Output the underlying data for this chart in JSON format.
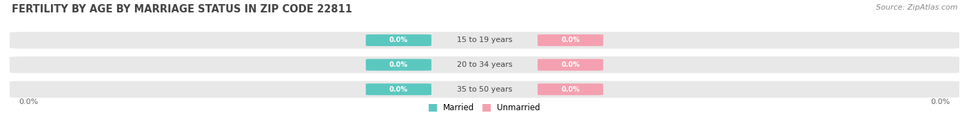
{
  "title": "FERTILITY BY AGE BY MARRIAGE STATUS IN ZIP CODE 22811",
  "source": "Source: ZipAtlas.com",
  "categories": [
    "15 to 19 years",
    "20 to 34 years",
    "35 to 50 years"
  ],
  "married_values": [
    0.0,
    0.0,
    0.0
  ],
  "unmarried_values": [
    0.0,
    0.0,
    0.0
  ],
  "married_color": "#5BC8C0",
  "unmarried_color": "#F4A0B0",
  "bar_bg_color": "#e8e8e8",
  "bar_height": 0.62,
  "left_label": "0.0%",
  "right_label": "0.0%",
  "legend_married": "Married",
  "legend_unmarried": "Unmarried",
  "title_fontsize": 10.5,
  "source_fontsize": 8,
  "tick_label_fontsize": 8,
  "background_color": "#ffffff"
}
